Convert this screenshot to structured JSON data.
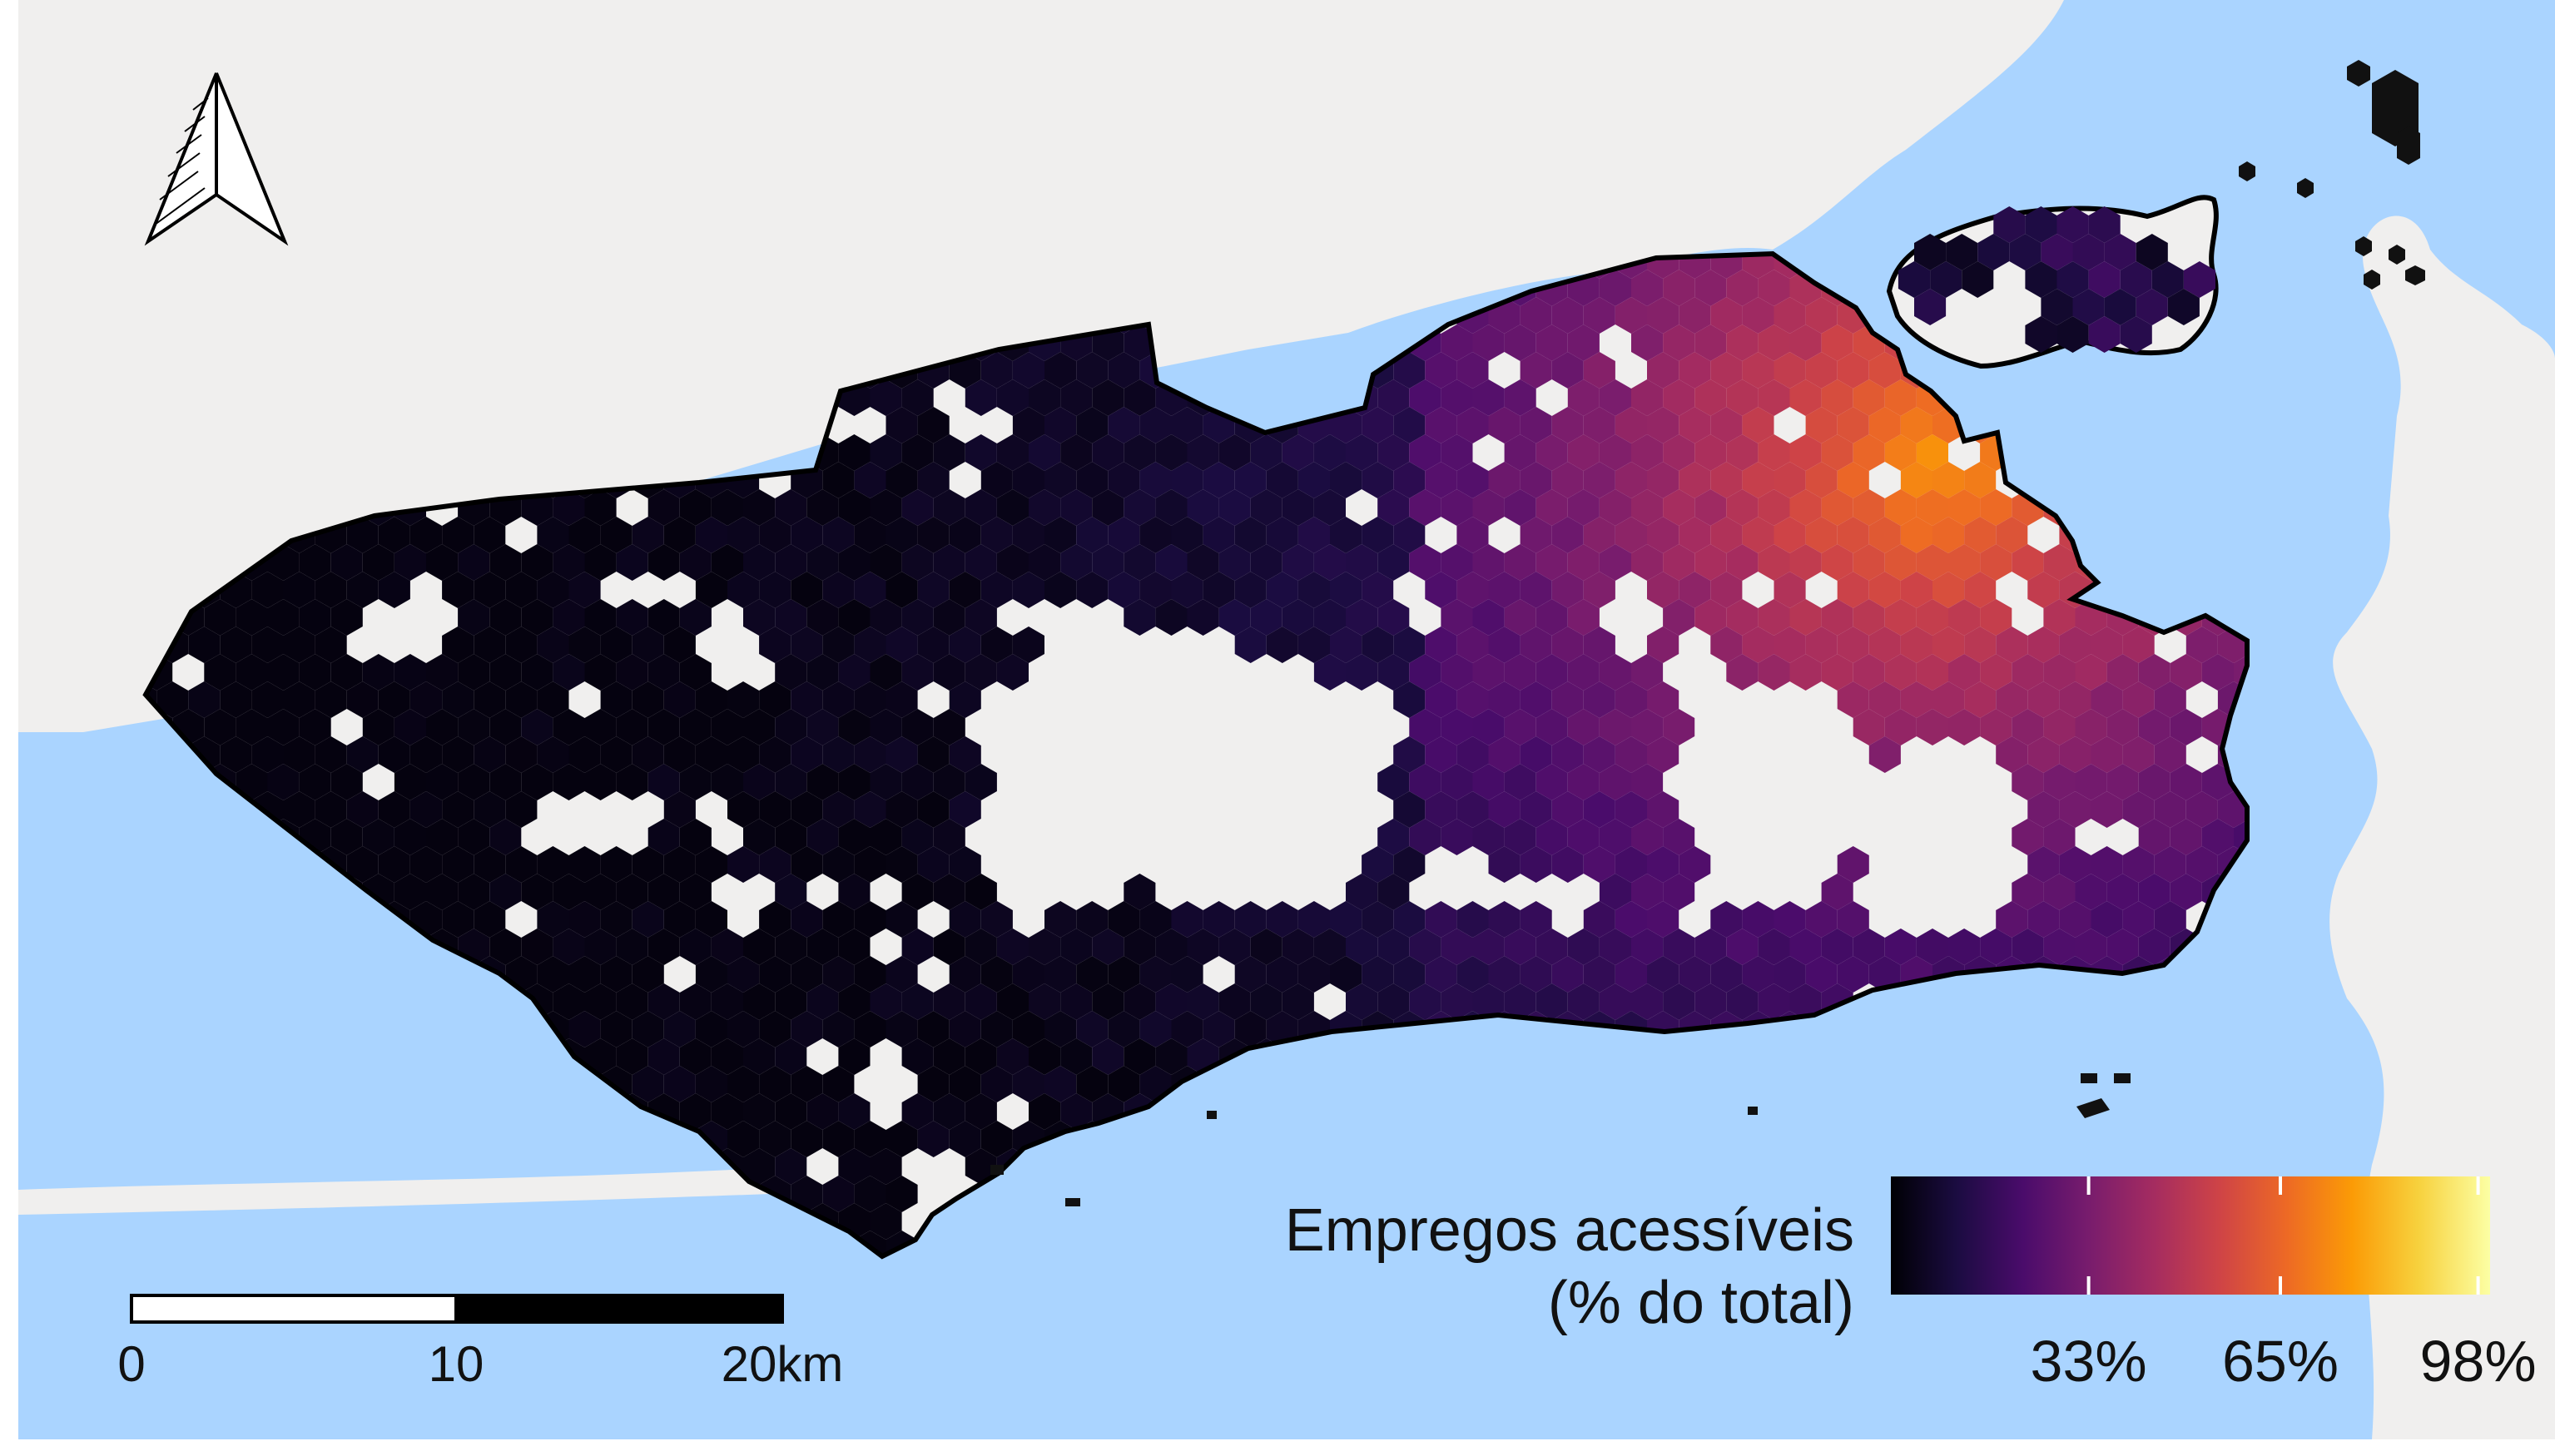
{
  "legend": {
    "title_line1": "Empregos acessíveis",
    "title_line2": "(% do total)",
    "ticks": [
      {
        "label": "33%",
        "value": 0.33
      },
      {
        "label": "65%",
        "value": 0.65
      },
      {
        "label": "98%",
        "value": 0.98
      }
    ],
    "colormap": [
      "#000004",
      "#1b0c41",
      "#4a0c6b",
      "#781c6d",
      "#a52c60",
      "#cf4446",
      "#ed6925",
      "#fb9b06",
      "#f7d13d",
      "#fcffa4"
    ]
  },
  "scale_bar": {
    "labels": [
      "0",
      "10",
      "20km"
    ]
  },
  "north_arrow": {
    "icon": "north-arrow-icon"
  },
  "colors": {
    "water": "#aad4ff",
    "land": "#f0efee",
    "boundary": "#000000"
  },
  "map_data": {
    "description_region": "Rio de Janeiro municipality",
    "value_range": [
      0,
      1
    ]
  }
}
